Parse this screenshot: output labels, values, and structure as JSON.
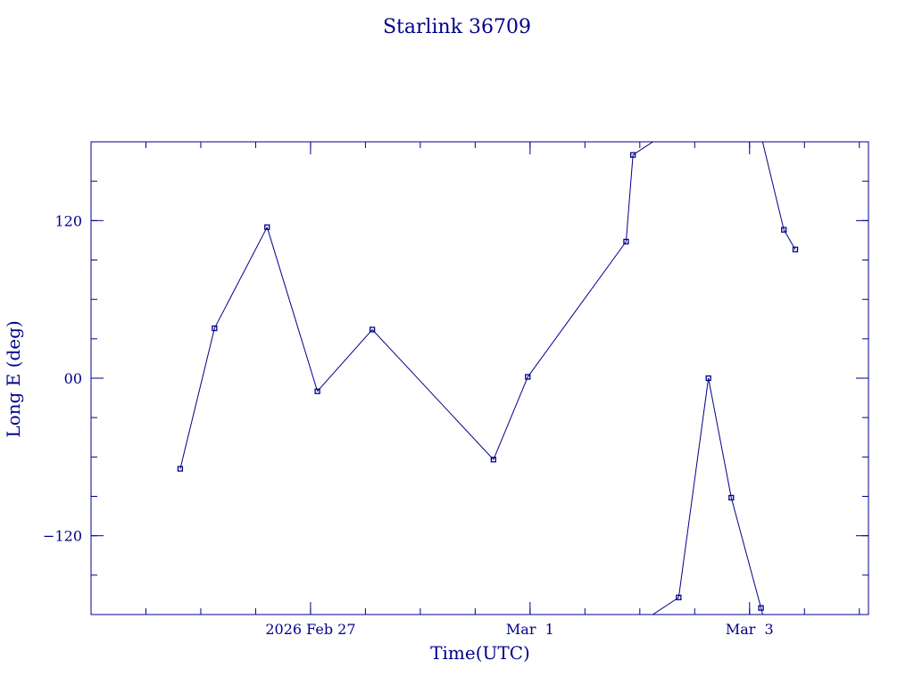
{
  "chart_data": {
    "type": "line",
    "title": "Starlink 36709",
    "xlabel": "Time(UTC)",
    "ylabel": "Long E (deg)",
    "x_unit": "days",
    "xlim": [
      "2026-02-25T00:00",
      "2026-03-04T02:00"
    ],
    "ylim": [
      -180,
      180
    ],
    "y_ticks": [
      {
        "value": 120,
        "label": "120"
      },
      {
        "value": 0,
        "label": "00"
      },
      {
        "value": -120,
        "label": "−120"
      }
    ],
    "y_minor_step": 30,
    "x_ticks": [
      {
        "value": "2026-02-27T00:00",
        "label": "2026 Feb 27"
      },
      {
        "value": "2026-03-01T00:00",
        "label": "Mar  1"
      },
      {
        "value": "2026-03-03T00:00",
        "label": "Mar  3"
      }
    ],
    "x_minor_step_hours": 12,
    "wraps_at_180": true,
    "grid": false,
    "series": [
      {
        "color": "#00008b",
        "marker": "square",
        "points": [
          {
            "t": "2026-02-25T19:30",
            "lon": -69
          },
          {
            "t": "2026-02-26T03:00",
            "lon": 38
          },
          {
            "t": "2026-02-26T14:30",
            "lon": 115
          },
          {
            "t": "2026-02-27T01:30",
            "lon": -10
          },
          {
            "t": "2026-02-27T13:30",
            "lon": 37
          },
          {
            "t": "2026-02-28T16:00",
            "lon": -62
          },
          {
            "t": "2026-02-28T23:30",
            "lon": 1
          },
          {
            "t": "2026-03-01T22:30",
            "lon": 170
          },
          {
            "t": "2026-03-01T21:00",
            "lon": 104
          },
          {
            "t": "2026-03-02T08:30",
            "lon": -167
          },
          {
            "t": "2026-03-02T20:00",
            "lon": -91
          },
          {
            "t": "2026-03-03T07:30",
            "lon": 113
          },
          {
            "t": "2026-03-02T15:00",
            "lon": 0
          },
          {
            "t": "2026-03-03T02:30",
            "lon": -175
          },
          {
            "t": "2026-03-03T10:00",
            "lon": 98
          }
        ]
      }
    ]
  }
}
